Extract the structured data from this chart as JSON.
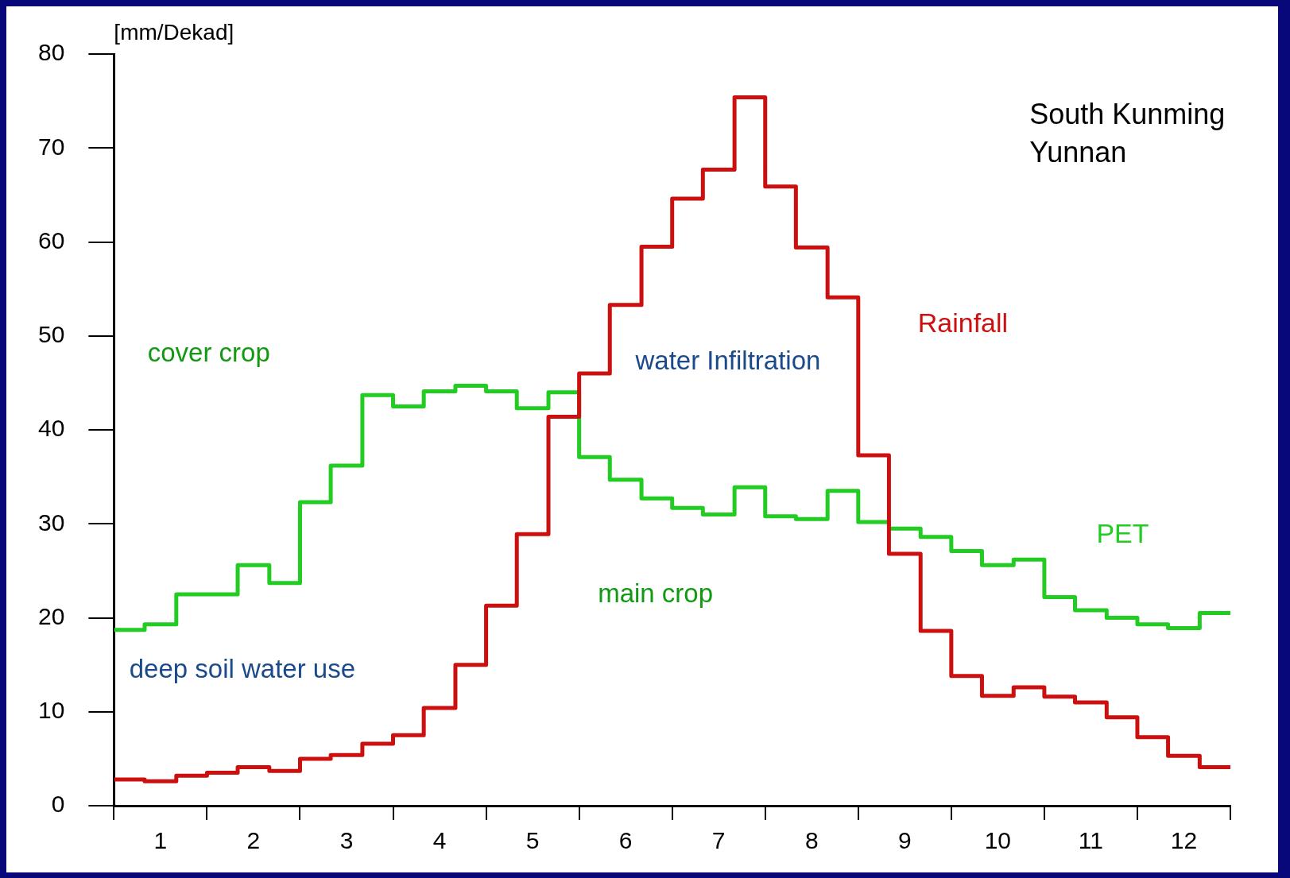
{
  "chart_data": {
    "type": "step",
    "title": "South Kunming\nYunnan",
    "ylabel": "[mm/Dekad]",
    "x": [
      0.5,
      0.83,
      1.17,
      1.5,
      1.83,
      2.17,
      2.5,
      2.83,
      3.17,
      3.5,
      3.83,
      4.17,
      4.5,
      4.83,
      5.17,
      5.5,
      5.83,
      6.17,
      6.5,
      6.83,
      7.17,
      7.5,
      7.83,
      8.17,
      8.5,
      8.83,
      9.17,
      9.5,
      9.83,
      10.17,
      10.5,
      10.83,
      11.17,
      11.5,
      11.83,
      12.17,
      12.5
    ],
    "series": [
      {
        "name": "Rainfall",
        "color": "#cc1010",
        "values": [
          2.8,
          2.6,
          3.2,
          3.5,
          4.1,
          3.7,
          5.0,
          5.4,
          6.6,
          7.5,
          10.4,
          15.0,
          21.3,
          28.9,
          41.4,
          46.0,
          53.3,
          59.5,
          64.6,
          67.7,
          75.4,
          65.9,
          59.4,
          54.1,
          37.3,
          26.8,
          18.6,
          13.8,
          11.7,
          12.6,
          11.6,
          11.0,
          9.4,
          7.3,
          5.3,
          4.1,
          4.1
        ]
      },
      {
        "name": "PET",
        "color": "#22cc22",
        "values": [
          18.7,
          19.3,
          22.5,
          22.5,
          25.6,
          23.7,
          32.3,
          36.2,
          43.7,
          42.5,
          44.1,
          44.7,
          44.1,
          42.3,
          44.0,
          37.1,
          34.7,
          32.7,
          31.7,
          31.0,
          33.9,
          30.8,
          30.5,
          33.5,
          30.2,
          29.5,
          28.6,
          27.1,
          25.6,
          26.2,
          22.2,
          20.8,
          20.0,
          19.3,
          18.9,
          20.5,
          20.5
        ]
      }
    ],
    "xlim": [
      0.5,
      12.5
    ],
    "xticks": [
      {
        "value": 0.5,
        "label": null
      },
      1,
      {
        "value": 1.5,
        "label": null
      },
      2,
      {
        "value": 2.5,
        "label": null
      },
      3,
      {
        "value": 3.5,
        "label": null
      },
      4,
      {
        "value": 4.5,
        "label": null
      },
      5,
      {
        "value": 5.5,
        "label": null
      },
      6,
      {
        "value": 6.5,
        "label": null
      },
      7,
      {
        "value": 7.5,
        "label": null
      },
      8,
      {
        "value": 8.5,
        "label": null
      },
      9,
      {
        "value": 9.5,
        "label": null
      },
      10,
      {
        "value": 10.5,
        "label": null
      },
      11,
      {
        "value": 11.5,
        "label": null
      },
      12,
      {
        "value": 12.5,
        "label": null
      }
    ],
    "ylim": [
      0,
      80
    ],
    "yticks": [
      0,
      10,
      20,
      30,
      40,
      50,
      60,
      70,
      80
    ],
    "grid": false,
    "legend": false,
    "line_style": "solid",
    "marker": "none",
    "annotations": [
      "cover crop",
      "deep soil water use",
      "water Infiltration",
      "main crop"
    ]
  }
}
